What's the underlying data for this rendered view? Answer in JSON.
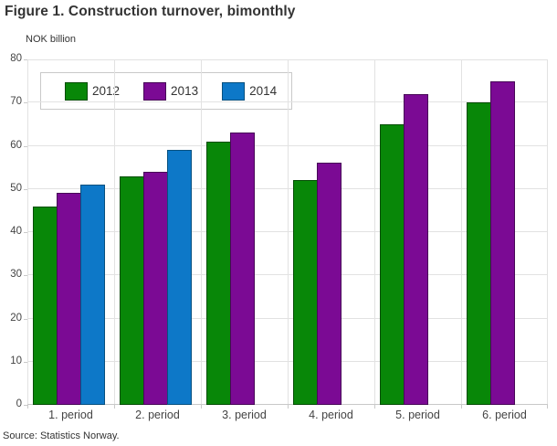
{
  "source": "Source: Statistics Norway.",
  "colors": {
    "grid": "#e2e2e2",
    "axis": "#c9c9c9",
    "title_text": "#333333",
    "tick_text": "#444444",
    "background": "#ffffff"
  },
  "chart_data": {
    "type": "bar",
    "title": "Figure 1. Construction turnover, bimonthly",
    "ylabel": "NOK billion",
    "xlabel": "",
    "categories": [
      "1. period",
      "2. period",
      "3. period",
      "4. period",
      "5. period",
      "6. period"
    ],
    "series": [
      {
        "name": "2012",
        "color": "#088708",
        "border": "#054d05",
        "values": [
          46,
          53,
          61,
          52,
          65,
          70
        ]
      },
      {
        "name": "2013",
        "color": "#7b0a94",
        "border": "#470757",
        "values": [
          49,
          54,
          63,
          56,
          72,
          75
        ]
      },
      {
        "name": "2014",
        "color": "#0d78c8",
        "border": "#07507f",
        "values": [
          51,
          59,
          null,
          null,
          null,
          null
        ]
      }
    ],
    "ylim": [
      0,
      80
    ],
    "ytick_step": 10,
    "grid": true,
    "legend_position": "top-left"
  }
}
